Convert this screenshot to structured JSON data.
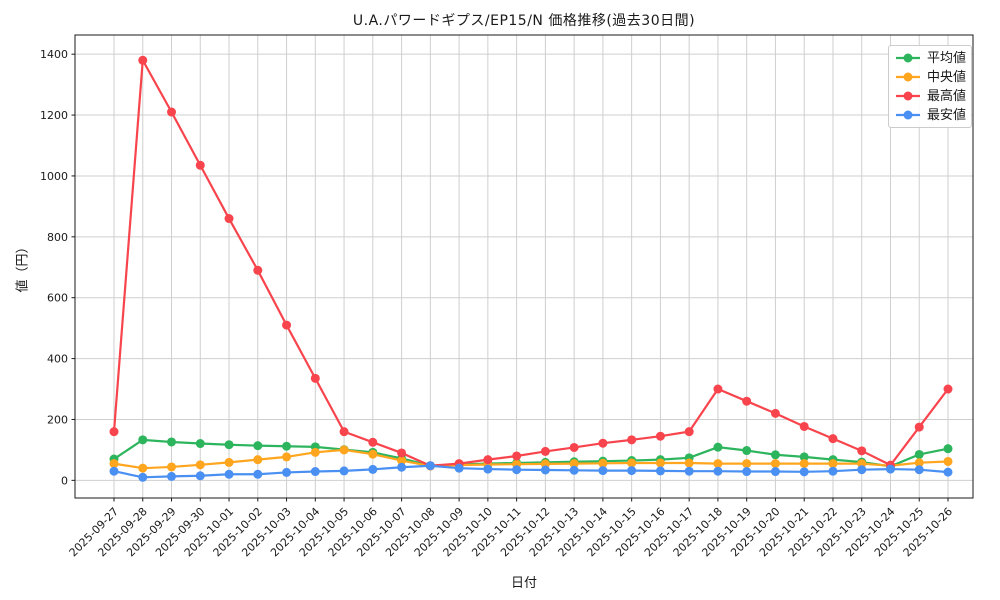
{
  "chart_data": {
    "type": "line",
    "title": "U.A.パワードギプス/EP15/N 価格推移(過去30日間)",
    "xlabel": "日付",
    "ylabel": "値（円）",
    "x": [
      "2025-09-27",
      "2025-09-28",
      "2025-09-29",
      "2025-09-30",
      "2025-10-01",
      "2025-10-02",
      "2025-10-03",
      "2025-10-04",
      "2025-10-05",
      "2025-10-06",
      "2025-10-07",
      "2025-10-08",
      "2025-10-09",
      "2025-10-10",
      "2025-10-11",
      "2025-10-12",
      "2025-10-13",
      "2025-10-14",
      "2025-10-15",
      "2025-10-16",
      "2025-10-17",
      "2025-10-18",
      "2025-10-19",
      "2025-10-20",
      "2025-10-21",
      "2025-10-22",
      "2025-10-23",
      "2025-10-24",
      "2025-10-25",
      "2025-10-26"
    ],
    "series": [
      {
        "name": "平均値",
        "color": "#2db55d",
        "values": [
          70,
          133,
          126,
          121,
          117,
          114,
          112,
          110,
          101,
          92,
          72,
          48,
          52,
          55,
          57,
          59,
          61,
          63,
          65,
          68,
          74,
          109,
          98,
          84,
          77,
          68,
          60,
          46,
          85,
          104
        ]
      },
      {
        "name": "中央値",
        "color": "#ffa51e",
        "values": [
          55,
          40,
          44,
          51,
          59,
          68,
          77,
          92,
          100,
          86,
          65,
          47,
          50,
          52,
          53,
          54,
          55,
          56,
          57,
          57,
          57,
          55,
          55,
          55,
          55,
          55,
          55,
          48,
          58,
          62
        ]
      },
      {
        "name": "最高値",
        "color": "#f8444c",
        "values": [
          160,
          1380,
          1210,
          1035,
          860,
          690,
          510,
          335,
          160,
          125,
          90,
          48,
          55,
          68,
          80,
          95,
          108,
          122,
          133,
          145,
          160,
          300,
          260,
          220,
          177,
          137,
          97,
          50,
          175,
          300
        ]
      },
      {
        "name": "最安値",
        "color": "#4a90f2",
        "values": [
          30,
          10,
          13,
          15,
          20,
          20,
          26,
          29,
          31,
          36,
          43,
          48,
          40,
          37,
          35,
          34,
          33,
          32,
          32,
          31,
          30,
          30,
          29,
          29,
          28,
          30,
          35,
          37,
          35,
          27
        ]
      }
    ],
    "yticks": [
      0,
      200,
      400,
      600,
      800,
      1000,
      1200,
      1400
    ],
    "ylim": [
      -58,
      1463
    ],
    "grid": true,
    "legend_position": "upper right"
  }
}
